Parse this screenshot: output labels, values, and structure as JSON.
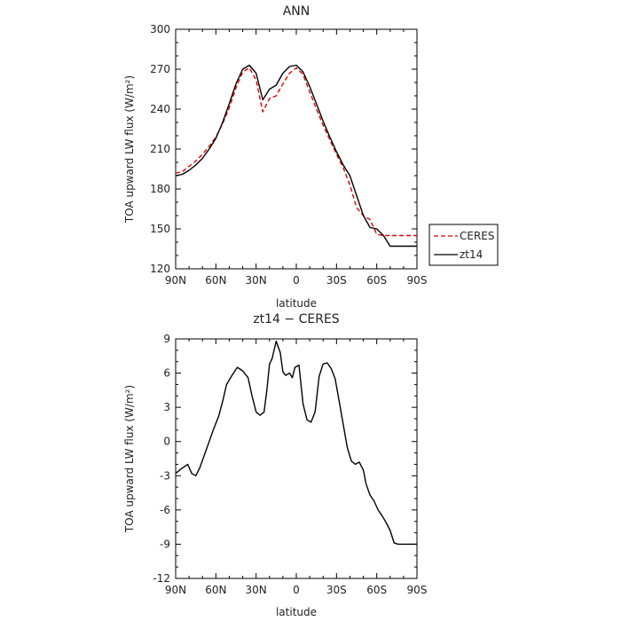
{
  "chart_data": [
    {
      "type": "line",
      "title": "ANN",
      "xlabel": "latitude",
      "ylabel": "TOA upward LW flux (W/m²)",
      "xlim": [
        90,
        -90
      ],
      "ylim": [
        120,
        300
      ],
      "x_ticks": [
        90,
        60,
        30,
        0,
        -30,
        -60,
        -90
      ],
      "x_tick_labels": [
        "90N",
        "60N",
        "30N",
        "0",
        "30S",
        "60S",
        "90S"
      ],
      "y_ticks": [
        120,
        150,
        180,
        210,
        240,
        270,
        300
      ],
      "legend": {
        "position": "right",
        "entries": [
          "CERES",
          "zt14"
        ]
      },
      "series": [
        {
          "name": "CERES",
          "color": "#e00000",
          "dash": "dashed",
          "x": [
            90,
            85,
            80,
            75,
            70,
            65,
            60,
            55,
            50,
            45,
            40,
            35,
            30,
            25,
            20,
            15,
            10,
            5,
            0,
            -5,
            -10,
            -15,
            -20,
            -25,
            -30,
            -35,
            -40,
            -45,
            -50,
            -55,
            -60,
            -65,
            -70,
            -75,
            -80,
            -85,
            -90
          ],
          "values": [
            192,
            193,
            197,
            201,
            206,
            212,
            219,
            229,
            241,
            256,
            268,
            271,
            262,
            238,
            248,
            250,
            259,
            267,
            271,
            266,
            253,
            240,
            228,
            217,
            206,
            196,
            183,
            166,
            160,
            157,
            146,
            145,
            145,
            145,
            145,
            145,
            145
          ]
        },
        {
          "name": "zt14",
          "color": "#000000",
          "dash": "solid",
          "x": [
            90,
            85,
            80,
            75,
            70,
            65,
            60,
            55,
            50,
            45,
            40,
            35,
            30,
            25,
            20,
            15,
            10,
            5,
            0,
            -5,
            -10,
            -15,
            -20,
            -25,
            -30,
            -35,
            -40,
            -45,
            -50,
            -55,
            -60,
            -65,
            -70,
            -75,
            -80,
            -85,
            -90
          ],
          "values": [
            190,
            191,
            194,
            198,
            203,
            210,
            218,
            230,
            244,
            259,
            270,
            273,
            267,
            247,
            255,
            258,
            267,
            272,
            273,
            268,
            257,
            244,
            231,
            219,
            208,
            198,
            190,
            175,
            160,
            151,
            150,
            145,
            137,
            137,
            137,
            137,
            137
          ]
        }
      ]
    },
    {
      "type": "line",
      "title": "zt14 − CERES",
      "xlabel": "latitude",
      "ylabel": "TOA upward LW flux (W/m²)",
      "xlim": [
        90,
        -90
      ],
      "ylim": [
        -12,
        9
      ],
      "x_ticks": [
        90,
        60,
        30,
        0,
        -30,
        -60,
        -90
      ],
      "x_tick_labels": [
        "90N",
        "60N",
        "30N",
        "0",
        "30S",
        "60S",
        "90S"
      ],
      "y_ticks": [
        -12,
        -9,
        -6,
        -3,
        0,
        3,
        6,
        9
      ],
      "series": [
        {
          "color": "#000000",
          "dash": "solid",
          "x": [
            90,
            86,
            81,
            78,
            75,
            72,
            68,
            65,
            62,
            58,
            55,
            52,
            48,
            44,
            40,
            36,
            33,
            30,
            27,
            24,
            22,
            20,
            18,
            15,
            12,
            10,
            8,
            5,
            3,
            1,
            -2,
            -5,
            -8,
            -11,
            -14,
            -17,
            -20,
            -23,
            -26,
            -29,
            -32,
            -35,
            -38,
            -41,
            -44,
            -47,
            -50,
            -52,
            -55,
            -58,
            -61,
            -64,
            -67,
            -70,
            -73,
            -76,
            -79,
            -82,
            -85,
            -88,
            -90
          ],
          "values": [
            -2.8,
            -2.4,
            -2.0,
            -2.8,
            -3.0,
            -2.3,
            -1.0,
            0.0,
            1.0,
            2.2,
            3.5,
            5.0,
            5.8,
            6.5,
            6.2,
            5.6,
            4.0,
            2.6,
            2.3,
            2.6,
            4.5,
            6.8,
            7.3,
            8.8,
            7.8,
            6.1,
            5.8,
            6.0,
            5.6,
            6.5,
            6.7,
            3.3,
            1.9,
            1.7,
            2.6,
            5.7,
            6.8,
            6.9,
            6.4,
            5.5,
            3.5,
            1.5,
            -0.5,
            -1.7,
            -2.0,
            -1.8,
            -2.5,
            -3.7,
            -4.7,
            -5.2,
            -6.0,
            -6.5,
            -7.1,
            -7.8,
            -8.9,
            -9.0,
            -9.0,
            -9.0,
            -9.0,
            -9.0,
            -9.0
          ]
        }
      ]
    }
  ]
}
